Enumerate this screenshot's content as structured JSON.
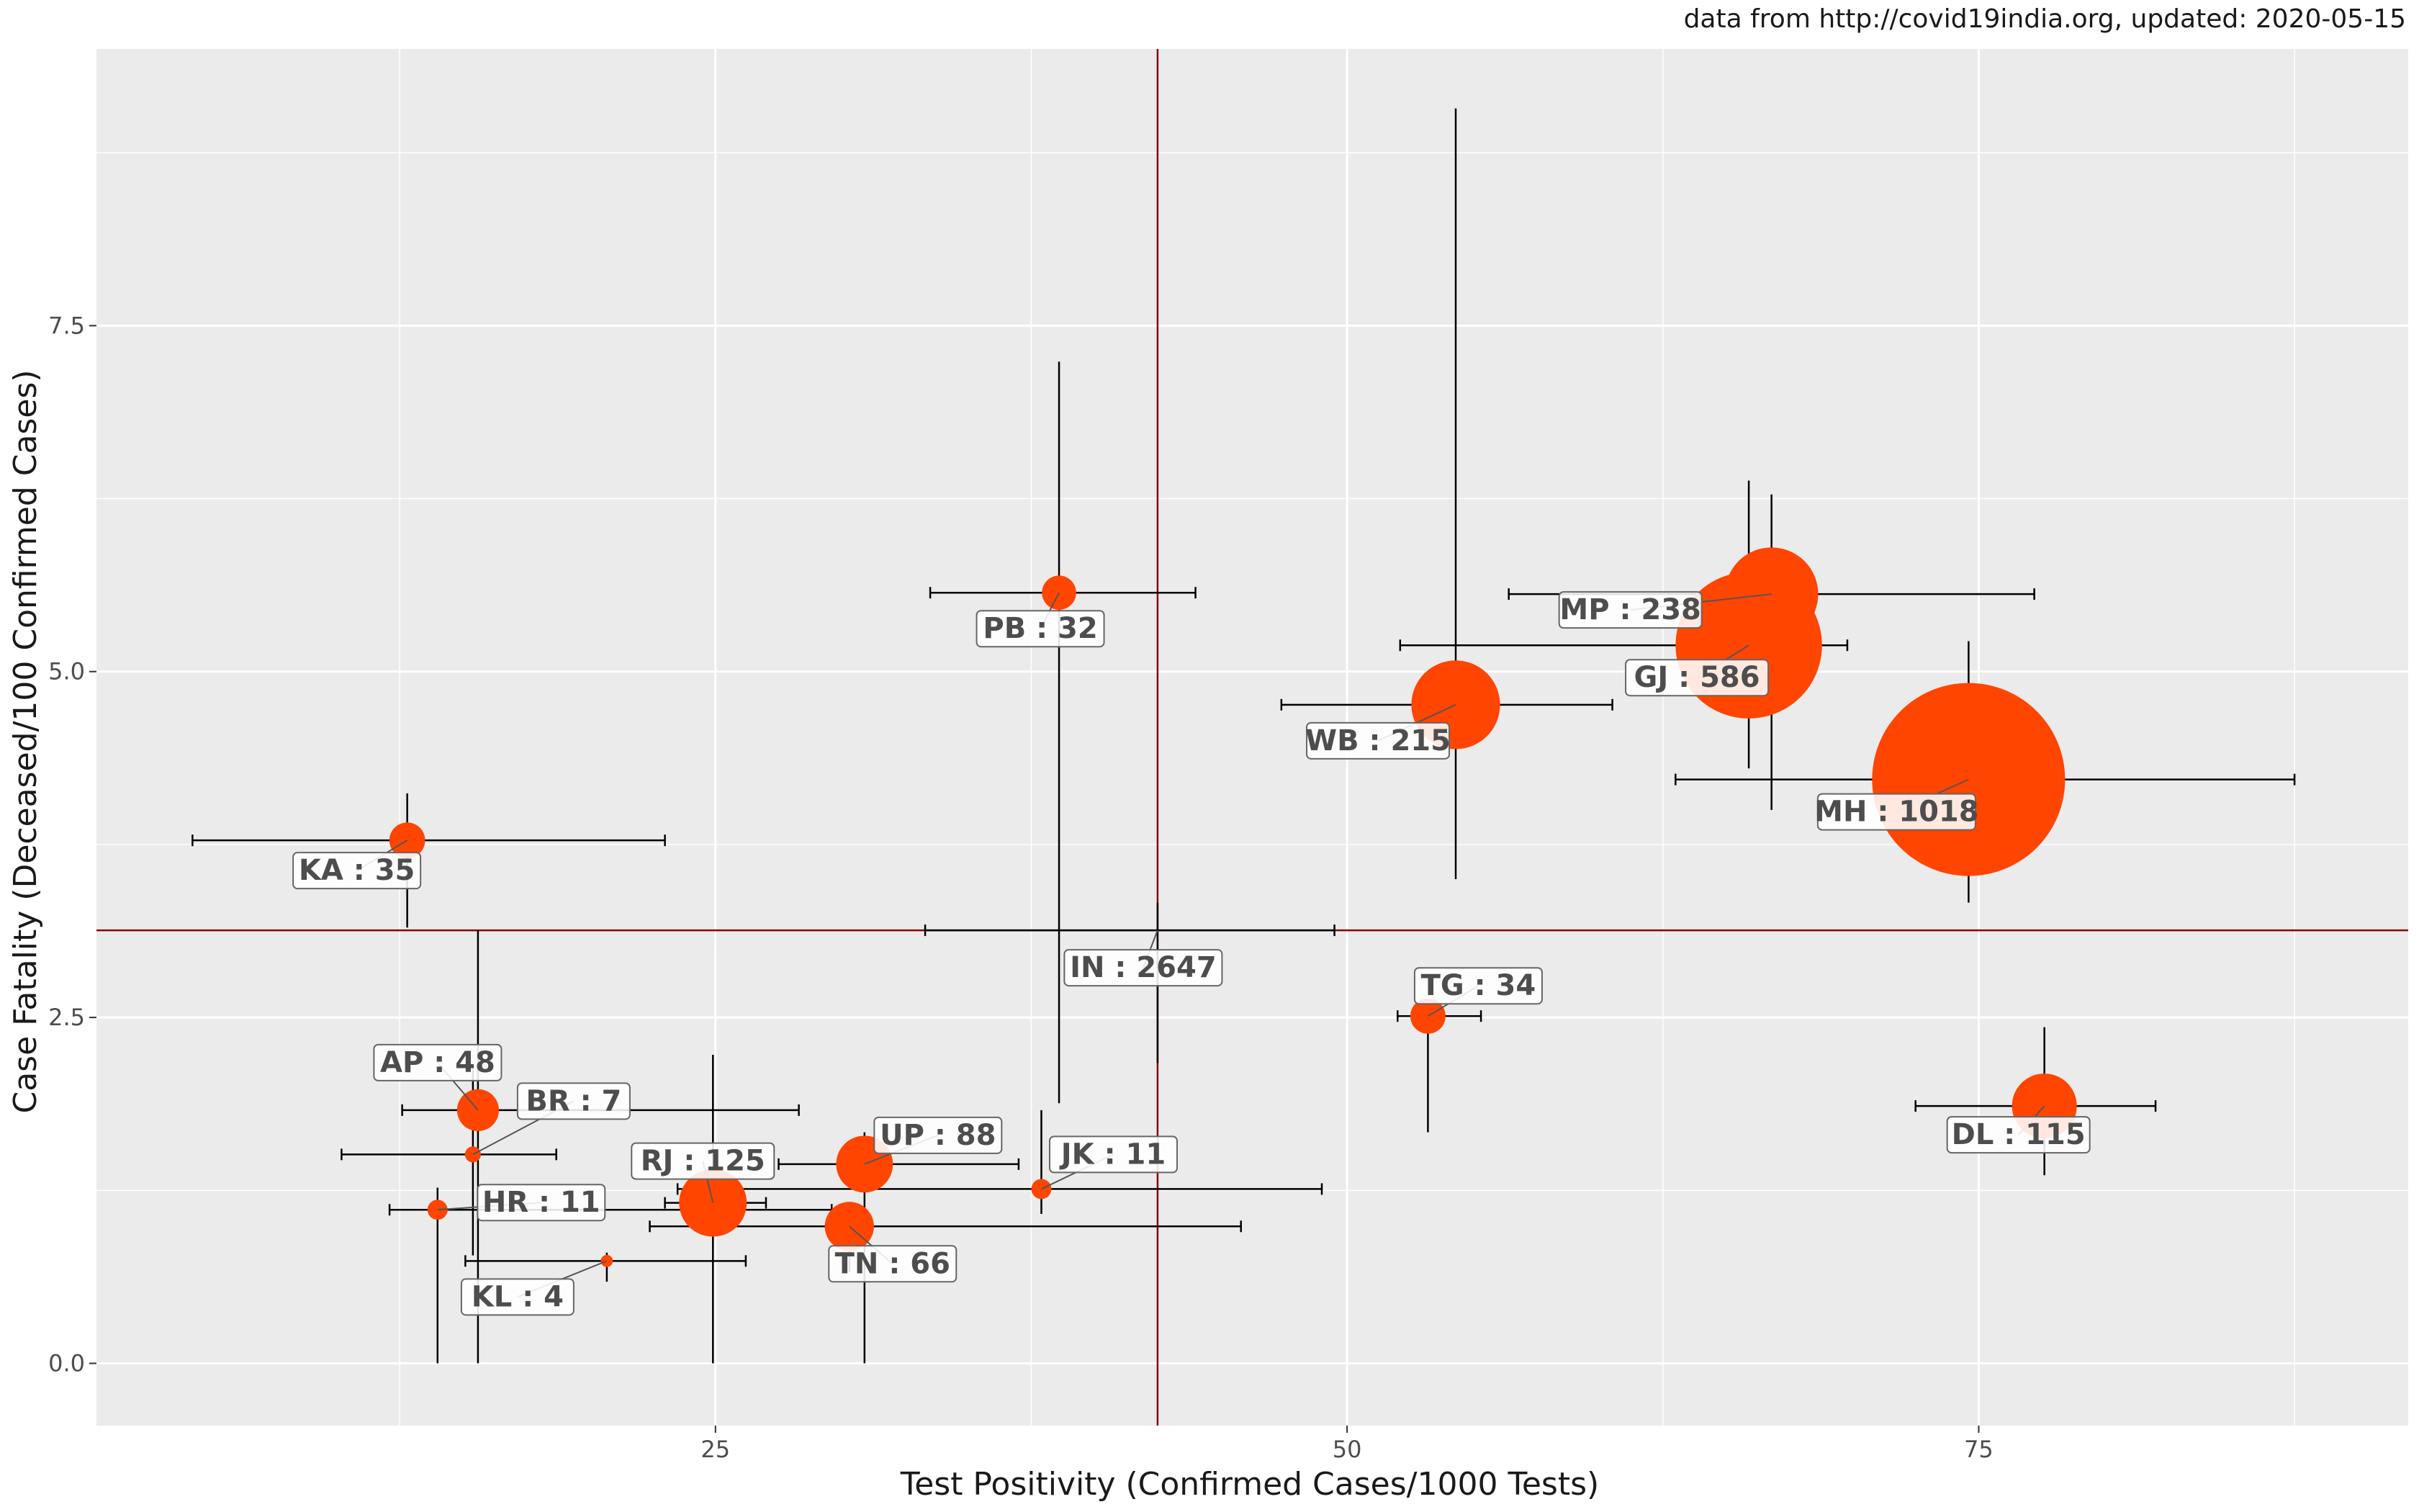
{
  "caption": "data from http://covid19india.org, updated: 2020-05-15",
  "colors": {
    "point": "#FF4500",
    "refline": "#8B0000",
    "panel": "#EBEBEB",
    "grid": "#FFFFFF",
    "errorbar": "#000000"
  },
  "chart_data": {
    "type": "scatter",
    "title": "",
    "xlabel": "Test Positivity (Confirmed Cases/1000 Tests)",
    "ylabel": "Case Fatality (Deceased/100 Confirmed Cases)",
    "xlim": [
      0.5,
      92
    ],
    "ylim": [
      -0.45,
      9.5
    ],
    "xticks": [
      25,
      50,
      75
    ],
    "xtick_labels": [
      "25",
      "50",
      "75"
    ],
    "yticks": [
      0,
      2.5,
      5,
      7.5
    ],
    "ytick_labels": [
      "0.0",
      "2.5",
      "5.0",
      "7.5"
    ],
    "grid": true,
    "point_size_variable": "deaths",
    "reference_lines": {
      "x": 42.5,
      "y": 3.13
    },
    "points": [
      {
        "state": "MH",
        "deaths": "1018",
        "x": 74.6,
        "y": 4.22,
        "xerr": [
          63,
          87.5
        ],
        "yerr": [
          3.33,
          5.22
        ]
      },
      {
        "state": "GJ",
        "deaths": "586",
        "x": 65.9,
        "y": 5.19,
        "xerr": [
          52.1,
          69.8
        ],
        "yerr": [
          4.3,
          6.38
        ]
      },
      {
        "state": "MP",
        "deaths": "238",
        "x": 66.8,
        "y": 5.56,
        "xerr": [
          56.4,
          77.2
        ],
        "yerr": [
          4.0,
          6.28
        ]
      },
      {
        "state": "WB",
        "deaths": "215",
        "x": 54.3,
        "y": 4.76,
        "xerr": [
          47.4,
          60.5
        ],
        "yerr": [
          3.5,
          9.07
        ]
      },
      {
        "state": "RJ",
        "deaths": "125",
        "x": 24.9,
        "y": 1.16,
        "xerr": [
          23,
          27
        ],
        "yerr": [
          0,
          2.23
        ]
      },
      {
        "state": "DL",
        "deaths": "115",
        "x": 77.6,
        "y": 1.86,
        "xerr": [
          72.5,
          82
        ],
        "yerr": [
          1.36,
          2.43
        ]
      },
      {
        "state": "UP",
        "deaths": "88",
        "x": 30.9,
        "y": 1.44,
        "xerr": [
          27.5,
          37
        ],
        "yerr": [
          0,
          1.67
        ]
      },
      {
        "state": "TN",
        "deaths": "66",
        "x": 30.3,
        "y": 0.99,
        "xerr": [
          22.4,
          45.8
        ],
        "yerr": [
          0.66,
          1.14
        ]
      },
      {
        "state": "AP",
        "deaths": "48",
        "x": 15.6,
        "y": 1.83,
        "xerr": [
          12.6,
          28.3
        ],
        "yerr": [
          0,
          3.13
        ]
      },
      {
        "state": "KA",
        "deaths": "35",
        "x": 12.8,
        "y": 3.78,
        "xerr": [
          4.3,
          23
        ],
        "yerr": [
          3.15,
          4.12
        ]
      },
      {
        "state": "TG",
        "deaths": "34",
        "x": 53.2,
        "y": 2.51,
        "xerr": [
          52,
          55.3
        ],
        "yerr": [
          1.67,
          2.51
        ]
      },
      {
        "state": "PB",
        "deaths": "32",
        "x": 38.6,
        "y": 5.57,
        "xerr": [
          33.5,
          44
        ],
        "yerr": [
          1.88,
          7.24
        ]
      },
      {
        "state": "JK",
        "deaths": "11",
        "x": 37.9,
        "y": 1.26,
        "xerr": [
          23.5,
          49
        ],
        "yerr": [
          1.08,
          1.83
        ]
      },
      {
        "state": "HR",
        "deaths": "11",
        "x": 14.0,
        "y": 1.11,
        "xerr": [
          12.1,
          29.6
        ],
        "yerr": [
          0,
          1.27
        ]
      },
      {
        "state": "BR",
        "deaths": "7",
        "x": 15.4,
        "y": 1.51,
        "xerr": [
          10.2,
          18.7
        ],
        "yerr": [
          0.78,
          2.15
        ]
      },
      {
        "state": "KL",
        "deaths": "4",
        "x": 20.7,
        "y": 0.74,
        "xerr": [
          15.1,
          26.2
        ],
        "yerr": [
          0.59,
          0.8
        ]
      },
      {
        "state": "IN",
        "deaths": "2647",
        "x": 42.5,
        "y": 3.13,
        "xerr": [
          33.3,
          49.5
        ],
        "yerr": [
          2.17,
          3.33
        ],
        "reference": true
      }
    ]
  }
}
